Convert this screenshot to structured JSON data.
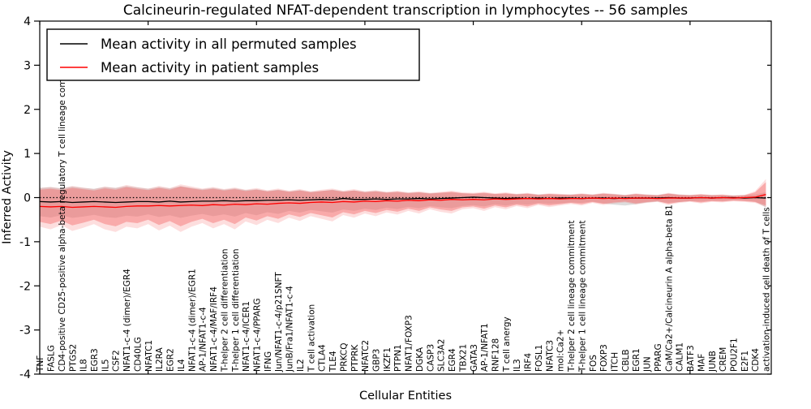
{
  "chart_data": {
    "type": "line",
    "title": "Calcineurin-regulated NFAT-dependent transcription in lymphocytes -- 56 samples",
    "xlabel": "Cellular Entities",
    "ylabel": "Inferred Activity",
    "ylim": [
      -4,
      4
    ],
    "yticks": [
      4,
      3,
      2,
      1,
      0,
      -1,
      -2,
      -3,
      -4
    ],
    "xtick_positions": [
      0,
      10,
      20,
      30,
      40,
      50,
      60
    ],
    "grid": false,
    "legend_position": "upper left",
    "reference_line": {
      "y": 0,
      "style": "dotted",
      "color": "#000000"
    },
    "colors": {
      "permuted": "#000000",
      "patient": "#ff0000",
      "patient_band": "#f56a6a",
      "permuted_band": "#9e9e9e"
    },
    "categories": [
      "TNF",
      "FASLG",
      "CD4-positive CD25-positive alpha-beta regulatory T cell lineage commitment",
      "PTGS2",
      "IL8",
      "EGR3",
      "IL5",
      "CSF2",
      "NFAT1-c-4 (dimer)/EGR4",
      "CD40LG",
      "NFATC1",
      "IL2RA",
      "EGR2",
      "IL4",
      "NFAT1-c-4 (dimer)/EGR1",
      "AP-1/NFAT1-c-4",
      "NFAT1-c-4/MAF/IRF4",
      "T-helper 2 cell differentiation",
      "T-helper 1 cell differentiation",
      "NFAT1-c-4/ICER1",
      "NFAT1-c-4/PPARG",
      "IFNG",
      "Jun/NFAT1-c-4/p21SNFT",
      "JunB/Fra1/NFAT1-c-4",
      "IL2",
      "T cell activation",
      "CTLA4",
      "TLE4",
      "PRKCQ",
      "PTPRK",
      "NFATC2",
      "GBP3",
      "IKZF1",
      "PTPN1",
      "NFAT1/FOXP3",
      "DGKA",
      "CASP3",
      "SLC3A2",
      "EGR4",
      "TBX21",
      "GATA3",
      "AP-1/NFAT1",
      "RNF128",
      "T cell anergy",
      "IL3",
      "IRF4",
      "FOSL1",
      "NFATC3",
      "mol:Ca2+",
      "T-helper 2 cell lineage commitment",
      "T-helper 1 cell lineage commitment",
      "FOS",
      "FOXP3",
      "ITCH",
      "CBLB",
      "EGR1",
      "JUN",
      "PPARG",
      "CaM/Ca2+/Calcineurin A alpha-beta B1",
      "CALM1",
      "BATF3",
      "MAF",
      "JUNB",
      "CREM",
      "POU2F1",
      "E2F1",
      "CDK4",
      "activation-induced cell death of T cells"
    ],
    "series": [
      {
        "name": "Mean activity in all permuted samples",
        "color": "#000000",
        "values": [
          -0.09,
          -0.1,
          -0.09,
          -0.11,
          -0.1,
          -0.09,
          -0.1,
          -0.11,
          -0.1,
          -0.09,
          -0.09,
          -0.1,
          -0.08,
          -0.1,
          -0.09,
          -0.08,
          -0.08,
          -0.07,
          -0.08,
          -0.07,
          -0.07,
          -0.06,
          -0.06,
          -0.05,
          -0.06,
          -0.05,
          -0.04,
          -0.05,
          -0.02,
          -0.04,
          -0.04,
          -0.03,
          -0.04,
          -0.03,
          -0.03,
          -0.02,
          -0.03,
          -0.02,
          -0.01,
          0.0,
          0.01,
          0.0,
          -0.01,
          -0.02,
          -0.01,
          -0.02,
          -0.01,
          -0.02,
          -0.01,
          -0.01,
          -0.02,
          -0.01,
          -0.01,
          -0.02,
          -0.01,
          -0.01,
          -0.01,
          -0.01,
          0.0,
          -0.01,
          -0.01,
          0.0,
          -0.01,
          0.0,
          0.0,
          -0.01,
          0.0,
          -0.01
        ]
      },
      {
        "name": "Mean activity in patient samples",
        "color": "#ff0000",
        "values": [
          -0.2,
          -0.21,
          -0.2,
          -0.22,
          -0.21,
          -0.2,
          -0.21,
          -0.22,
          -0.2,
          -0.19,
          -0.19,
          -0.18,
          -0.19,
          -0.18,
          -0.17,
          -0.18,
          -0.16,
          -0.17,
          -0.15,
          -0.16,
          -0.14,
          -0.15,
          -0.13,
          -0.12,
          -0.13,
          -0.11,
          -0.1,
          -0.11,
          -0.09,
          -0.1,
          -0.08,
          -0.09,
          -0.07,
          -0.08,
          -0.06,
          -0.07,
          -0.05,
          -0.06,
          -0.04,
          -0.05,
          -0.04,
          -0.05,
          -0.03,
          -0.04,
          -0.03,
          -0.02,
          -0.03,
          -0.02,
          -0.03,
          -0.02,
          -0.02,
          -0.01,
          -0.02,
          -0.01,
          -0.02,
          -0.01,
          -0.01,
          -0.02,
          -0.01,
          -0.01,
          -0.01,
          0.0,
          -0.01,
          0.0,
          -0.01,
          0.0,
          0.01,
          0.07
        ]
      }
    ],
    "bands": [
      {
        "name": "permuted samples spread",
        "color": "#9e9e9e",
        "alpha": 0.35,
        "upper": [
          0.22,
          0.24,
          0.21,
          0.25,
          0.22,
          0.2,
          0.24,
          0.22,
          0.26,
          0.23,
          0.2,
          0.24,
          0.21,
          0.26,
          0.22,
          0.19,
          0.22,
          0.18,
          0.21,
          0.17,
          0.19,
          0.15,
          0.18,
          0.14,
          0.17,
          0.13,
          0.15,
          0.18,
          0.14,
          0.16,
          0.13,
          0.15,
          0.12,
          0.13,
          0.11,
          0.12,
          0.1,
          0.11,
          0.12,
          0.1,
          0.09,
          0.1,
          0.08,
          0.09,
          0.08,
          0.09,
          0.07,
          0.08,
          0.07,
          0.07,
          0.08,
          0.07,
          0.09,
          0.08,
          0.06,
          0.08,
          0.07,
          0.06,
          0.09,
          0.07,
          0.06,
          0.07,
          0.06,
          0.06,
          0.05,
          0.06,
          0.07,
          0.12
        ],
        "lower": [
          -0.42,
          -0.45,
          -0.4,
          -0.46,
          -0.43,
          -0.39,
          -0.44,
          -0.46,
          -0.41,
          -0.43,
          -0.38,
          -0.44,
          -0.4,
          -0.46,
          -0.41,
          -0.37,
          -0.42,
          -0.38,
          -0.43,
          -0.35,
          -0.4,
          -0.33,
          -0.37,
          -0.3,
          -0.34,
          -0.28,
          -0.31,
          -0.34,
          -0.27,
          -0.3,
          -0.25,
          -0.28,
          -0.23,
          -0.26,
          -0.21,
          -0.24,
          -0.19,
          -0.22,
          -0.24,
          -0.19,
          -0.17,
          -0.2,
          -0.15,
          -0.18,
          -0.14,
          -0.16,
          -0.12,
          -0.14,
          -0.13,
          -0.11,
          -0.12,
          -0.09,
          -0.13,
          -0.16,
          -0.18,
          -0.15,
          -0.11,
          -0.09,
          -0.12,
          -0.1,
          -0.08,
          -0.09,
          -0.07,
          -0.08,
          -0.06,
          -0.07,
          -0.09,
          -0.22
        ]
      },
      {
        "name": "patient samples spread",
        "color": "#f56a6a",
        "alpha": 0.45,
        "upper": [
          0.18,
          0.2,
          0.17,
          0.22,
          0.19,
          0.16,
          0.21,
          0.18,
          0.24,
          0.2,
          0.17,
          0.22,
          0.18,
          0.25,
          0.21,
          0.17,
          0.2,
          0.16,
          0.19,
          0.15,
          0.18,
          0.14,
          0.17,
          0.13,
          0.16,
          0.12,
          0.15,
          0.17,
          0.13,
          0.16,
          0.12,
          0.14,
          0.11,
          0.13,
          0.1,
          0.12,
          0.09,
          0.11,
          0.13,
          0.1,
          0.09,
          0.11,
          0.08,
          0.1,
          0.07,
          0.09,
          0.06,
          0.08,
          0.07,
          0.06,
          0.08,
          0.06,
          0.09,
          0.07,
          0.05,
          0.08,
          0.06,
          0.05,
          0.09,
          0.06,
          0.05,
          0.07,
          0.05,
          0.06,
          0.04,
          0.05,
          0.12,
          0.35
        ],
        "lower": [
          -0.55,
          -0.6,
          -0.52,
          -0.63,
          -0.57,
          -0.5,
          -0.6,
          -0.65,
          -0.55,
          -0.58,
          -0.5,
          -0.62,
          -0.53,
          -0.65,
          -0.55,
          -0.48,
          -0.58,
          -0.5,
          -0.6,
          -0.45,
          -0.52,
          -0.42,
          -0.48,
          -0.38,
          -0.44,
          -0.35,
          -0.4,
          -0.45,
          -0.33,
          -0.38,
          -0.3,
          -0.35,
          -0.28,
          -0.32,
          -0.25,
          -0.3,
          -0.22,
          -0.27,
          -0.3,
          -0.22,
          -0.2,
          -0.25,
          -0.18,
          -0.22,
          -0.16,
          -0.2,
          -0.14,
          -0.18,
          -0.15,
          -0.12,
          -0.15,
          -0.1,
          -0.14,
          -0.11,
          -0.09,
          -0.13,
          -0.1,
          -0.08,
          -0.14,
          -0.1,
          -0.08,
          -0.11,
          -0.08,
          -0.09,
          -0.07,
          -0.08,
          -0.1,
          -0.18
        ]
      }
    ]
  }
}
